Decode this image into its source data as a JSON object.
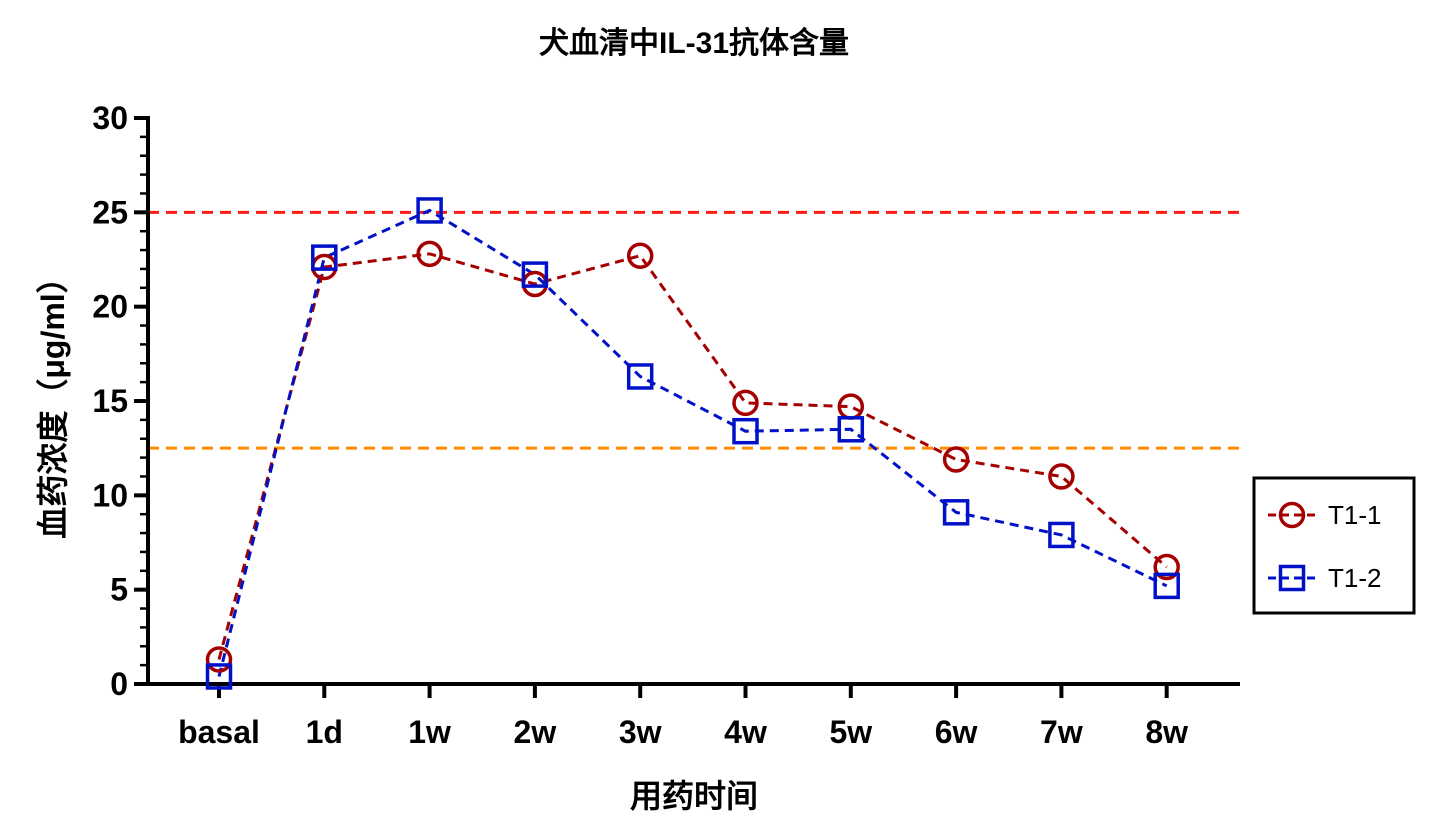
{
  "chart_data": {
    "type": "line",
    "title": "犬血清中IL-31抗体含量",
    "xlabel": "用药时间",
    "ylabel": "血药浓度（μg/ml）",
    "categories": [
      "basal",
      "1d",
      "1w",
      "2w",
      "3w",
      "4w",
      "5w",
      "6w",
      "7w",
      "8w"
    ],
    "ylim": [
      0,
      30
    ],
    "yticks": [
      0,
      5,
      10,
      15,
      20,
      25,
      30
    ],
    "series": [
      {
        "name": "T1-1",
        "marker": "circle",
        "color": "#a50000",
        "values": [
          1.3,
          22.1,
          22.8,
          21.2,
          22.7,
          14.9,
          14.7,
          11.9,
          11.0,
          6.2
        ]
      },
      {
        "name": "T1-2",
        "marker": "square",
        "color": "#0011c8",
        "values": [
          0.4,
          22.6,
          25.1,
          21.7,
          16.3,
          13.4,
          13.5,
          9.1,
          7.9,
          5.2
        ]
      }
    ],
    "reference_lines": [
      {
        "name": "upper-reference",
        "value": 25,
        "color": "#ff1a1a"
      },
      {
        "name": "lower-reference",
        "value": 12.5,
        "color": "#ff8c00"
      }
    ],
    "legend": {
      "position": "right"
    }
  }
}
